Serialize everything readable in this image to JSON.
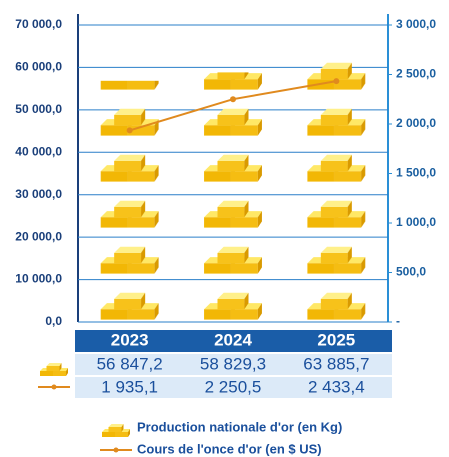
{
  "chart_data": {
    "type": "pictograph-bar-line",
    "categories": [
      "2023",
      "2024",
      "2025"
    ],
    "series": [
      {
        "name": "Production nationale d'or (en Kg)",
        "color": "#f5c518",
        "values": [
          56847.2,
          58829.3,
          63885.7
        ],
        "value_labels": [
          "56 847,2",
          "58 829,3",
          "63 885,7"
        ]
      },
      {
        "name": "Cours de l'once d'or (en $ US)",
        "color": "#e08a1e",
        "axis": "y2",
        "values": [
          1935.1,
          2250.5,
          2433.4
        ],
        "value_labels": [
          "1 935,1",
          "2 250,5",
          "2 433,4"
        ]
      }
    ],
    "ylim": [
      0,
      70000
    ],
    "yticks": [
      {
        "value": 0,
        "label": "0,0"
      },
      {
        "value": 10000,
        "label": "10 000,0"
      },
      {
        "value": 20000,
        "label": "20 000,0"
      },
      {
        "value": 30000,
        "label": "30 000,0"
      },
      {
        "value": 40000,
        "label": "40 000,0"
      },
      {
        "value": 50000,
        "label": "50 000,0"
      },
      {
        "value": 60000,
        "label": "60 000,0"
      },
      {
        "value": 70000,
        "label": "70 000,0"
      }
    ],
    "y2lim": [
      0,
      3000
    ],
    "y2ticks": [
      {
        "value": 0,
        "label": "-"
      },
      {
        "value": 500,
        "label": "500,0"
      },
      {
        "value": 1000,
        "label": "1 000,0"
      },
      {
        "value": 1500,
        "label": "1 500,0"
      },
      {
        "value": 2000,
        "label": "2 000,0"
      },
      {
        "value": 2500,
        "label": "2 500,0"
      },
      {
        "value": 3000,
        "label": "3 000,0"
      }
    ],
    "grid": true
  }
}
